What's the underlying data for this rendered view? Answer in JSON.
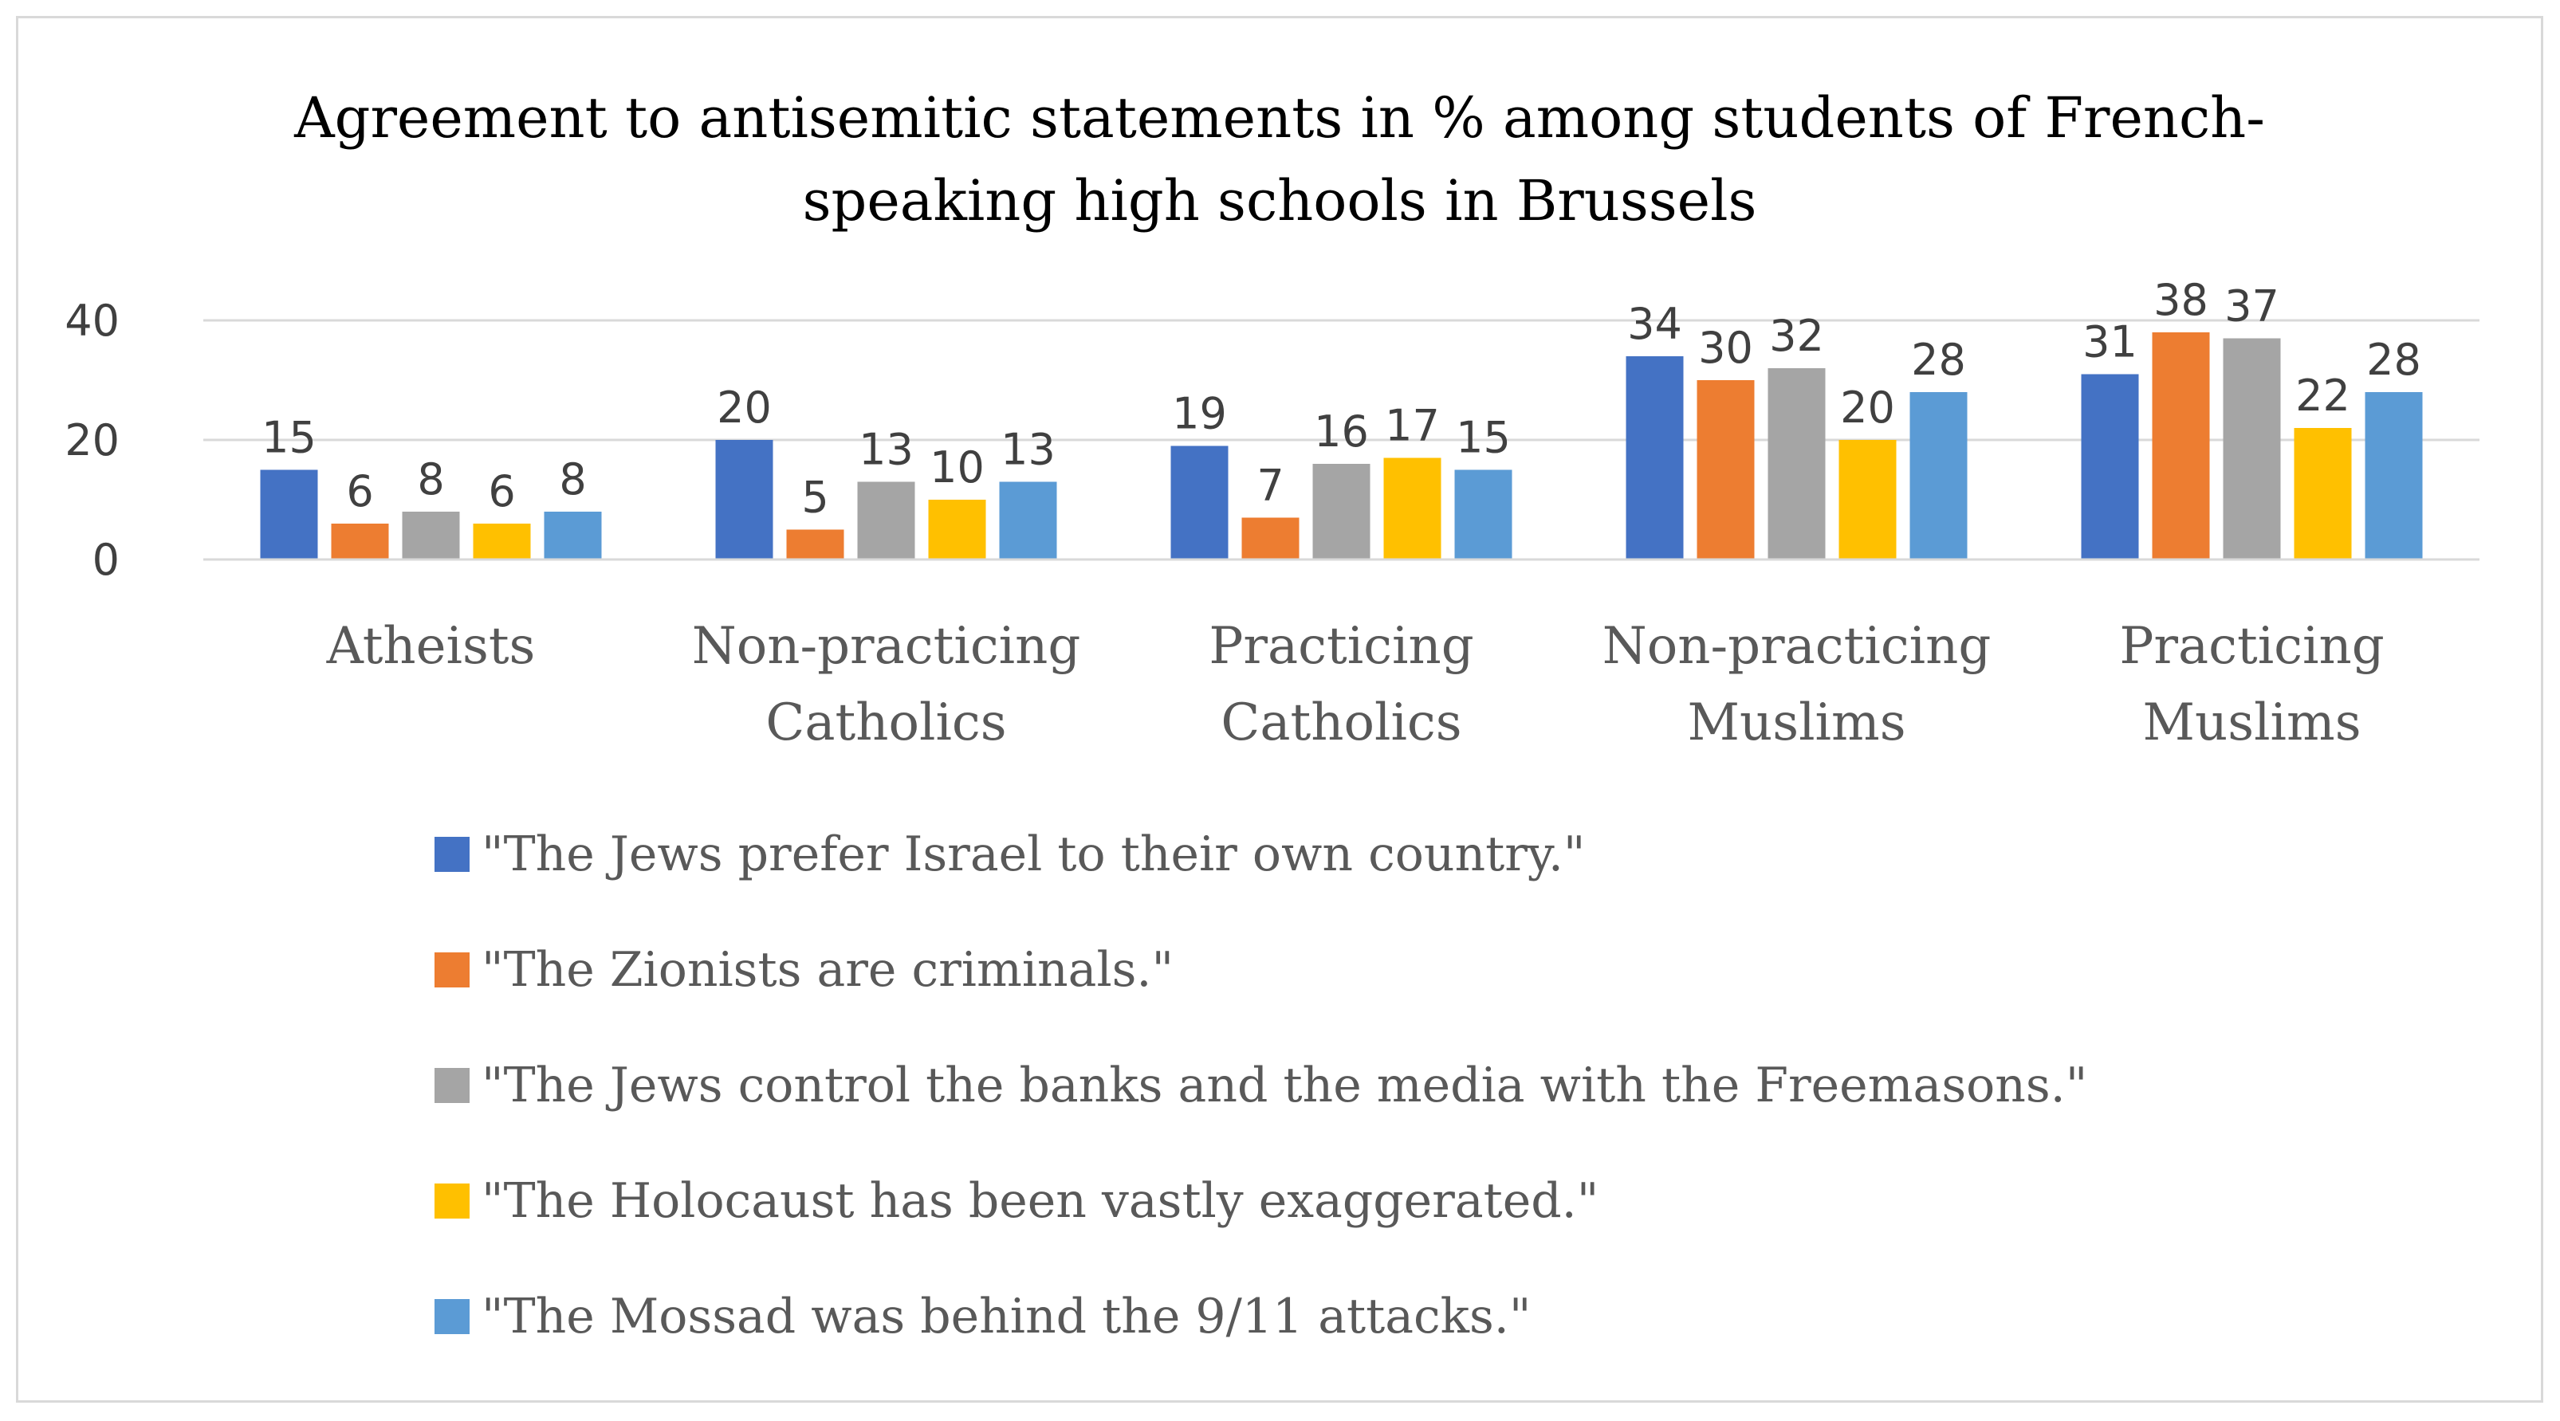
{
  "chart_data": {
    "type": "bar",
    "title": "Agreement to antisemitic statements in %  among students of French-speaking high schools in Brussels",
    "title_lines": [
      "Agreement to antisemitic statements in %  among students of French-",
      "speaking high schools in Brussels"
    ],
    "xlabel": "",
    "ylabel": "",
    "ylim": [
      0,
      40
    ],
    "yticks": [
      0,
      20,
      40
    ],
    "grid": true,
    "legend_position": "bottom",
    "categories": [
      "Atheists",
      "Non-practicing Catholics",
      "Practicing Catholics",
      "Non-practicing Muslims",
      "Practicing Muslims"
    ],
    "category_lines": [
      [
        "Atheists"
      ],
      [
        "Non-practicing",
        "Catholics"
      ],
      [
        "Practicing",
        "Catholics"
      ],
      [
        "Non-practicing",
        "Muslims"
      ],
      [
        "Practicing",
        "Muslims"
      ]
    ],
    "series": [
      {
        "name": "\"The Jews prefer Israel to their own country.\"",
        "color": "#4472c4",
        "values": [
          15,
          20,
          19,
          34,
          31
        ]
      },
      {
        "name": "\"The Zionists are criminals.\"",
        "color": "#ed7d31",
        "values": [
          6,
          5,
          7,
          30,
          38
        ]
      },
      {
        "name": "\"The Jews control the banks and the media with the Freemasons.\"",
        "color": "#a5a5a5",
        "values": [
          8,
          13,
          16,
          32,
          37
        ]
      },
      {
        "name": "\"The Holocaust has been vastly exaggerated.\"",
        "color": "#ffc000",
        "values": [
          6,
          10,
          17,
          20,
          22
        ]
      },
      {
        "name": "\"The Mossad was behind the 9/11 attacks.\"",
        "color": "#5b9bd5",
        "values": [
          8,
          13,
          15,
          28,
          28
        ]
      }
    ]
  }
}
